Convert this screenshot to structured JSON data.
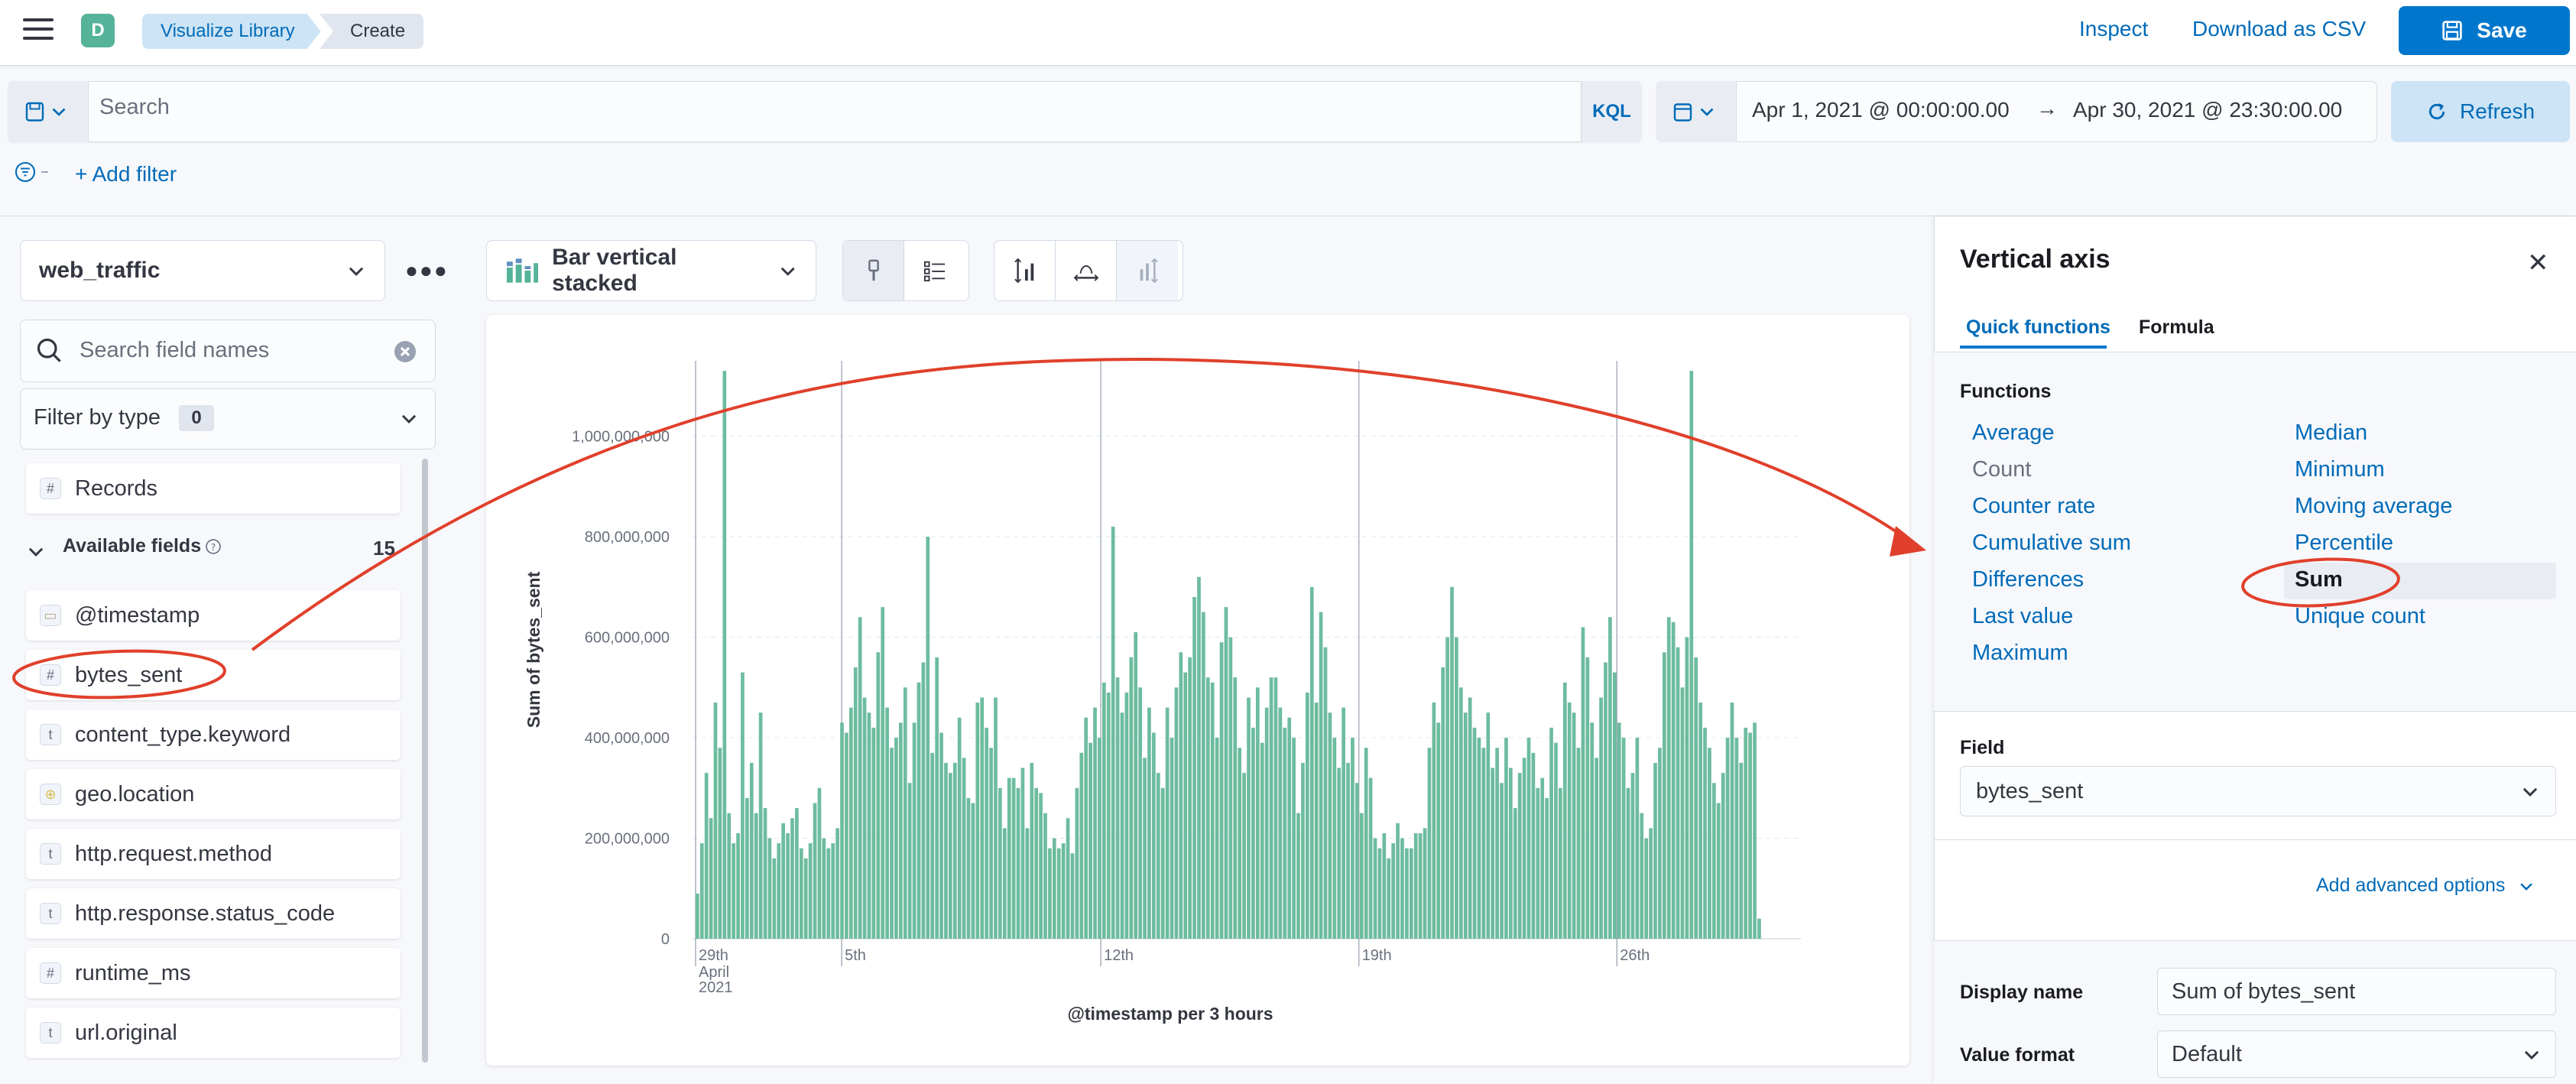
{
  "header": {
    "space_initial": "D",
    "breadcrumbs": [
      "Visualize Library",
      "Create"
    ],
    "inspect_label": "Inspect",
    "download_label": "Download as CSV",
    "save_label": "Save"
  },
  "query": {
    "placeholder": "Search",
    "language": "KQL",
    "date_start": "Apr 1, 2021 @ 00:00:00.00",
    "date_end": "Apr 30, 2021 @ 23:30:00.00",
    "refresh_label": "Refresh",
    "add_filter_label": "+ Add filter"
  },
  "sidebar": {
    "data_view": "web_traffic",
    "search_placeholder": "Search field names",
    "filter_by_type_label": "Filter by type",
    "filter_count": "0",
    "records_label": "Records",
    "available_label": "Available fields",
    "available_count": "15",
    "fields": [
      {
        "name": "@timestamp",
        "type": "date"
      },
      {
        "name": "bytes_sent",
        "type": "#"
      },
      {
        "name": "content_type.keyword",
        "type": "t"
      },
      {
        "name": "geo.location",
        "type": "geo"
      },
      {
        "name": "http.request.method",
        "type": "t"
      },
      {
        "name": "http.response.status_code",
        "type": "t"
      },
      {
        "name": "runtime_ms",
        "type": "#"
      },
      {
        "name": "url.original",
        "type": "t"
      }
    ]
  },
  "workspace": {
    "chart_type_label": "Bar vertical stacked"
  },
  "chart_data": {
    "type": "bar",
    "ylabel": "Sum of bytes_sent",
    "xlabel": "@timestamp per 3 hours",
    "ylim": [
      0,
      1150000000
    ],
    "y_ticks": [
      "0",
      "200,000,000",
      "400,000,000",
      "600,000,000",
      "800,000,000",
      "1,000,000,000"
    ],
    "x_ticks": [
      "29th",
      "5th",
      "12th",
      "19th",
      "26th"
    ],
    "x_tick_sub": [
      "April",
      "2021"
    ],
    "bar_color": "#6dbc9f",
    "values": [
      90,
      190,
      330,
      240,
      470,
      380,
      1130,
      250,
      190,
      210,
      530,
      280,
      350,
      250,
      450,
      260,
      200,
      160,
      190,
      230,
      210,
      240,
      260,
      180,
      160,
      190,
      270,
      300,
      200,
      180,
      190,
      220,
      430,
      410,
      460,
      540,
      640,
      480,
      450,
      420,
      570,
      660,
      460,
      380,
      400,
      430,
      500,
      310,
      430,
      510,
      550,
      800,
      370,
      560,
      410,
      350,
      330,
      350,
      440,
      360,
      280,
      270,
      470,
      480,
      420,
      380,
      480,
      300,
      220,
      320,
      320,
      300,
      340,
      220,
      350,
      300,
      290,
      250,
      180,
      200,
      180,
      190,
      240,
      170,
      300,
      370,
      440,
      390,
      460,
      400,
      510,
      490,
      820,
      520,
      450,
      490,
      560,
      610,
      500,
      360,
      460,
      410,
      330,
      300,
      460,
      400,
      500,
      570,
      530,
      560,
      680,
      720,
      650,
      520,
      510,
      400,
      590,
      660,
      600,
      520,
      380,
      330,
      480,
      420,
      500,
      390,
      460,
      520,
      520,
      460,
      420,
      440,
      400,
      250,
      350,
      490,
      700,
      470,
      650,
      580,
      450,
      400,
      340,
      460,
      350,
      400,
      310,
      250,
      380,
      320,
      200,
      180,
      210,
      160,
      190,
      230,
      200,
      180,
      180,
      210,
      210,
      220,
      380,
      470,
      430,
      540,
      600,
      700,
      600,
      500,
      450,
      480,
      420,
      400,
      380,
      450,
      340,
      380,
      310,
      400,
      340,
      260,
      330,
      360,
      400,
      370,
      300,
      320,
      280,
      420,
      390,
      300,
      510,
      470,
      450,
      380,
      620,
      560,
      430,
      360,
      480,
      550,
      640,
      530,
      430,
      400,
      300,
      330,
      400,
      250,
      200,
      220,
      350,
      380,
      570,
      640,
      630,
      580,
      500,
      600,
      1130,
      560,
      470,
      420,
      380,
      310,
      270,
      330,
      400,
      470,
      400,
      350,
      420,
      410,
      430,
      40
    ]
  },
  "right_panel": {
    "title": "Vertical axis",
    "tabs": [
      "Quick functions",
      "Formula"
    ],
    "functions_label": "Functions",
    "functions_col1": [
      "Average",
      "Count",
      "Counter rate",
      "Cumulative sum",
      "Differences",
      "Last value",
      "Maximum"
    ],
    "functions_col2": [
      "Median",
      "Minimum",
      "Moving average",
      "Percentile",
      "Sum",
      "Unique count"
    ],
    "field_label": "Field",
    "field_value": "bytes_sent",
    "advanced_label": "Add advanced options",
    "display_name_label": "Display name",
    "display_name_value": "Sum of bytes_sent",
    "value_format_label": "Value format",
    "value_format_value": "Default"
  }
}
